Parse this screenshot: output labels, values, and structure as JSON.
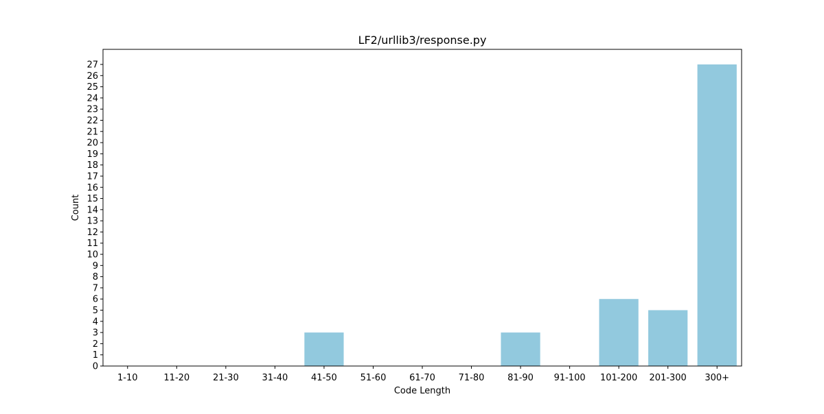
{
  "chart_data": {
    "type": "bar",
    "title": "LF2/urllib3/response.py",
    "xlabel": "Code Length",
    "ylabel": "Count",
    "categories": [
      "1-10",
      "11-20",
      "21-30",
      "31-40",
      "41-50",
      "51-60",
      "61-70",
      "71-80",
      "81-90",
      "91-100",
      "101-200",
      "201-300",
      "300+"
    ],
    "values": [
      0,
      0,
      0,
      0,
      3,
      0,
      0,
      0,
      3,
      0,
      6,
      5,
      27
    ],
    "ylim": [
      0,
      28.35
    ],
    "yticks": [
      0,
      1,
      2,
      3,
      4,
      5,
      6,
      7,
      8,
      9,
      10,
      11,
      12,
      13,
      14,
      15,
      16,
      17,
      18,
      19,
      20,
      21,
      22,
      23,
      24,
      25,
      26,
      27
    ],
    "bar_color": "#92c9de",
    "grid": false,
    "legend": "none"
  }
}
